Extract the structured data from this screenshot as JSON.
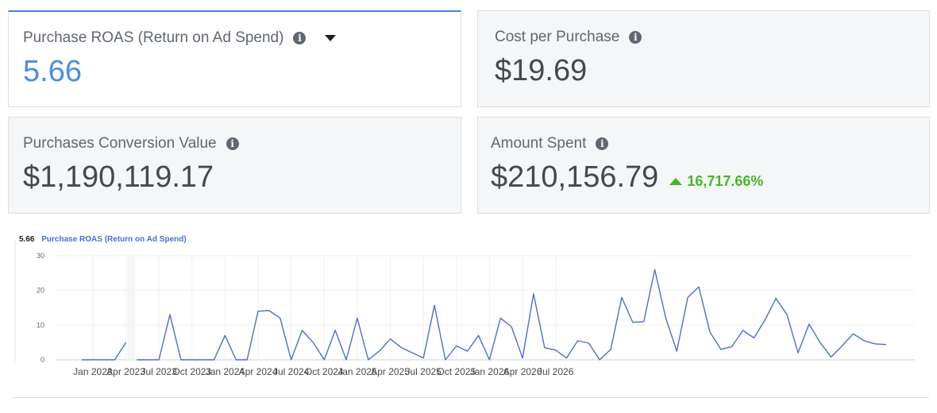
{
  "cards": {
    "roas": {
      "label": "Purchase ROAS (Return on Ad Spend)",
      "value": "5.66"
    },
    "cpp": {
      "label": "Cost per Purchase",
      "value": "$19.69"
    },
    "pcv": {
      "label": "Purchases Conversion Value",
      "value": "$1,190,119.17"
    },
    "spent": {
      "label": "Amount Spent",
      "value": "$210,156.79",
      "delta": "16,717.66%"
    }
  },
  "colors": {
    "accent": "#4a8ee6",
    "line": "#4a6fd4",
    "positive": "#42b72a"
  },
  "chart_data": {
    "type": "line",
    "summary_value": "5.66",
    "series_label": "Purchase ROAS (Return on Ad Spend)",
    "xlabel": "",
    "ylabel": "",
    "ylim": [
      0,
      30
    ],
    "y_ticks": [
      0,
      10,
      20,
      30
    ],
    "x_tick_labels": [
      "Jan 2023",
      "Apr 2023",
      "Jul 2023",
      "Oct 2023",
      "Jan 2024",
      "Apr 2024",
      "Jul 2024",
      "Oct 2024",
      "Jan 2025",
      "Apr 2025",
      "Jul 2025",
      "Oct 2025",
      "Jan 2026",
      "Apr 2026",
      "Jul 2026"
    ],
    "grid": true,
    "gap_highlight": [
      "2023-04",
      "2023-05"
    ],
    "series": [
      {
        "values": [
          [
            "2022-12",
            0
          ],
          [
            "2023-01",
            0
          ],
          [
            "2023-02",
            0
          ],
          [
            "2023-03",
            0
          ],
          [
            "2023-04",
            5
          ],
          null,
          [
            "2023-05",
            0
          ],
          [
            "2023-06",
            0
          ],
          [
            "2023-07",
            0
          ],
          [
            "2023-08",
            13
          ],
          [
            "2023-09",
            0
          ],
          [
            "2023-10",
            0
          ],
          [
            "2023-11",
            0
          ],
          [
            "2023-12",
            0
          ],
          [
            "2024-01",
            7
          ],
          [
            "2024-02",
            0
          ],
          [
            "2024-03",
            0
          ],
          [
            "2024-04",
            14
          ],
          [
            "2024-05",
            14.2
          ],
          [
            "2024-06",
            12
          ],
          [
            "2024-07",
            0
          ],
          [
            "2024-08",
            8.5
          ],
          [
            "2024-09",
            5
          ],
          [
            "2024-10",
            0
          ],
          [
            "2024-11",
            8.5
          ],
          [
            "2024-12",
            0
          ],
          [
            "2025-01",
            12
          ],
          [
            "2025-02",
            0
          ],
          [
            "2025-03",
            2.5
          ],
          [
            "2025-04",
            6
          ],
          [
            "2025-05",
            3.5
          ],
          [
            "2025-06",
            2
          ],
          [
            "2025-07",
            0.5
          ],
          [
            "2025-08",
            15.7
          ],
          [
            "2025-09",
            0
          ],
          [
            "2025-10",
            4
          ],
          [
            "2025-11",
            2.5
          ],
          [
            "2025-12",
            7
          ],
          [
            "2026-01",
            0
          ],
          [
            "2026-02",
            12
          ],
          [
            "2026-03",
            9.5
          ],
          [
            "2026-04",
            0.5
          ],
          [
            "2026-05",
            19
          ],
          [
            "2026-06",
            3.5
          ],
          [
            "2026-07",
            2.8
          ],
          [
            "2026-08",
            0.5
          ],
          [
            "2026-09",
            5.5
          ],
          [
            "2026-10",
            4.8
          ],
          [
            "2026-11",
            0
          ],
          [
            "2026-12",
            3
          ],
          [
            "2027-01",
            18
          ],
          [
            "2027-02",
            10.8
          ],
          [
            "2027-03",
            11
          ],
          [
            "2027-04",
            26
          ],
          [
            "2027-05",
            12
          ],
          [
            "2027-06",
            2.5
          ],
          [
            "2027-07",
            18
          ],
          [
            "2027-08",
            21
          ],
          [
            "2027-09",
            8
          ],
          [
            "2027-10",
            3
          ],
          [
            "2027-11",
            3.8
          ],
          [
            "2027-12",
            8.5
          ],
          [
            "2028-01",
            6.3
          ],
          [
            "2028-02",
            11.5
          ],
          [
            "2028-03",
            17.7
          ],
          [
            "2028-04",
            13
          ],
          [
            "2028-05",
            2
          ],
          [
            "2028-06",
            10.3
          ],
          [
            "2028-07",
            5
          ],
          [
            "2028-08",
            0.8
          ],
          [
            "2028-09",
            4
          ],
          [
            "2028-10",
            7.5
          ],
          [
            "2028-11",
            5.5
          ],
          [
            "2028-12",
            4.6
          ],
          [
            "2029-01",
            4.4
          ]
        ]
      }
    ]
  }
}
